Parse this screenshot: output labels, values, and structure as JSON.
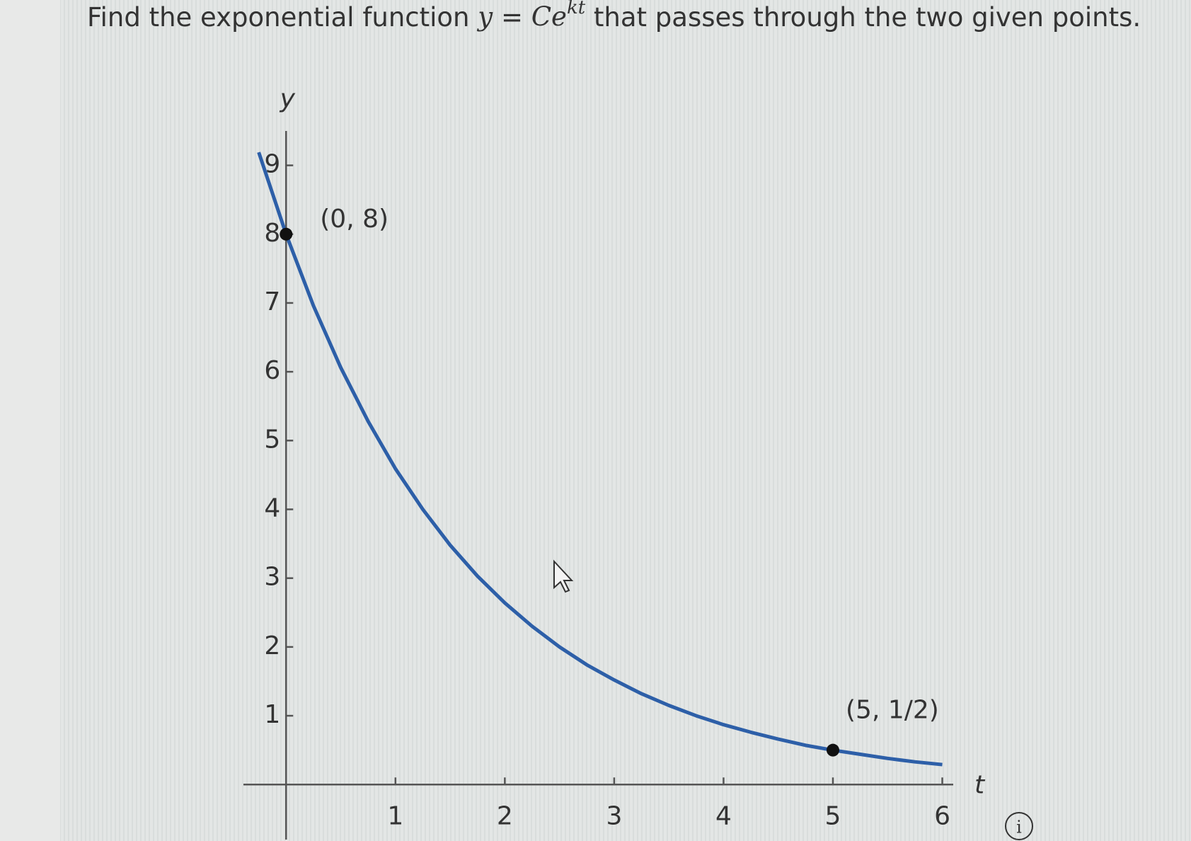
{
  "header": {
    "title_parts": [
      "Find the exponential function",
      "y",
      "=",
      "Ce",
      "kt",
      "that passes through the two given points."
    ]
  },
  "chart_data": {
    "type": "line",
    "x_label": "t",
    "y_label": "y",
    "x": [
      -0.25,
      0,
      0.25,
      0.5,
      0.75,
      1,
      1.25,
      1.5,
      1.75,
      2,
      2.25,
      2.5,
      2.75,
      3,
      3.25,
      3.5,
      3.75,
      4,
      4.25,
      4.5,
      4.75,
      5,
      5.25,
      5.5,
      5.75,
      6
    ],
    "series": [
      {
        "color": "#2d5fa8",
        "values": [
          9.19,
          8,
          6.96,
          6.06,
          5.28,
          4.59,
          4.0,
          3.48,
          3.03,
          2.64,
          2.3,
          2.0,
          1.74,
          1.52,
          1.32,
          1.15,
          1.0,
          0.87,
          0.76,
          0.66,
          0.57,
          0.5,
          0.44,
          0.38,
          0.33,
          0.29
        ]
      }
    ],
    "points": [
      {
        "x": 0,
        "y": 8,
        "label": "(0, 8)"
      },
      {
        "x": 5,
        "y": 0.5,
        "label": "(5, 1/2)"
      }
    ],
    "xlim": [
      -0.39,
      6.1
    ],
    "ylim": [
      -0.8,
      9.5
    ],
    "xticks": [
      1,
      2,
      3,
      4,
      5,
      6
    ],
    "yticks": [
      1,
      2,
      3,
      4,
      5,
      6,
      7,
      8,
      9
    ]
  },
  "info_icon": "i"
}
